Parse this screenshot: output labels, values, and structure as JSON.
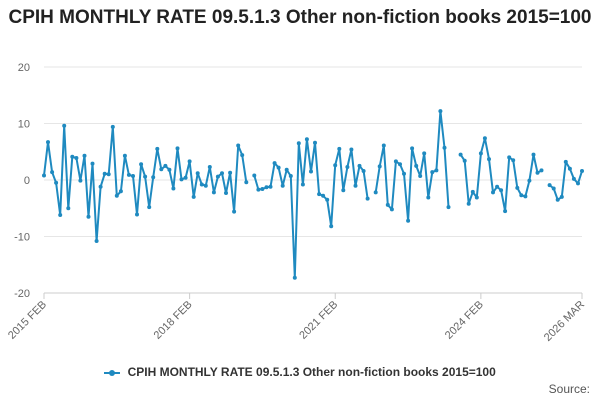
{
  "chart_data": {
    "type": "line",
    "title": "CPIH MONTHLY RATE 09.5.1.3 Other non-fiction books 2015=100",
    "xlabel": "",
    "ylabel": "",
    "ylim": [
      -20,
      20
    ],
    "yticks": [
      20,
      10,
      0,
      -10,
      -20
    ],
    "x_tick_labels": [
      "2015 FEB",
      "2018 FEB",
      "2021 FEB",
      "2024 FEB",
      "2026 MAR"
    ],
    "x_start": "2015 FEB",
    "x_end": "2026 MAR",
    "series": [
      {
        "name": "CPIH MONTHLY RATE 09.5.1.3 Other non-fiction books 2015=100",
        "color": "#1f8ac0",
        "values": [
          0.8,
          6.7,
          1.4,
          -0.5,
          -6.2,
          9.6,
          -5.0,
          4.1,
          3.9,
          -0.1,
          4.3,
          -6.5,
          2.9,
          -10.8,
          -1.2,
          1.1,
          1.0,
          9.4,
          -2.8,
          -2.0,
          4.3,
          0.9,
          0.7,
          -6.1,
          2.8,
          0.6,
          -4.8,
          0.5,
          5.5,
          1.9,
          2.5,
          1.8,
          -1.5,
          5.6,
          0.1,
          0.4,
          3.3,
          -3.0,
          1.2,
          -0.8,
          -1.0,
          2.3,
          -2.2,
          0.6,
          1.2,
          -2.3,
          1.3,
          -5.6,
          6.1,
          4.4,
          -0.4,
          null,
          0.8,
          -1.7,
          -1.6,
          -1.3,
          -1.2,
          3.0,
          2.2,
          -1.0,
          1.8,
          0.7,
          -17.3,
          6.5,
          -0.8,
          7.2,
          1.5,
          6.6,
          -2.5,
          -2.8,
          -3.5,
          -8.2,
          2.6,
          5.5,
          -1.8,
          2.3,
          5.4,
          -1.0,
          2.5,
          1.6,
          -3.3,
          null,
          -2.2,
          2.4,
          6.1,
          -4.4,
          -5.2,
          3.3,
          2.8,
          1.1,
          -7.2,
          5.6,
          2.5,
          0.7,
          4.7,
          -3.1,
          1.4,
          1.7,
          12.2,
          5.7,
          -4.8,
          null,
          null,
          4.5,
          3.4,
          -4.2,
          -2.1,
          -3.1,
          4.7,
          7.4,
          3.7,
          -2.2,
          -1.2,
          -1.8,
          -5.5,
          4.0,
          3.5,
          -1.4,
          -2.7,
          -2.9,
          -0.1,
          4.5,
          1.3,
          1.7,
          null,
          -0.9,
          -1.5,
          -3.5,
          -3.0,
          3.2,
          2.0,
          0.2,
          -0.6,
          1.6
        ]
      }
    ]
  },
  "legend": {
    "label": "CPIH MONTHLY RATE 09.5.1.3 Other non-fiction books 2015=100"
  },
  "source_label": "Source:"
}
